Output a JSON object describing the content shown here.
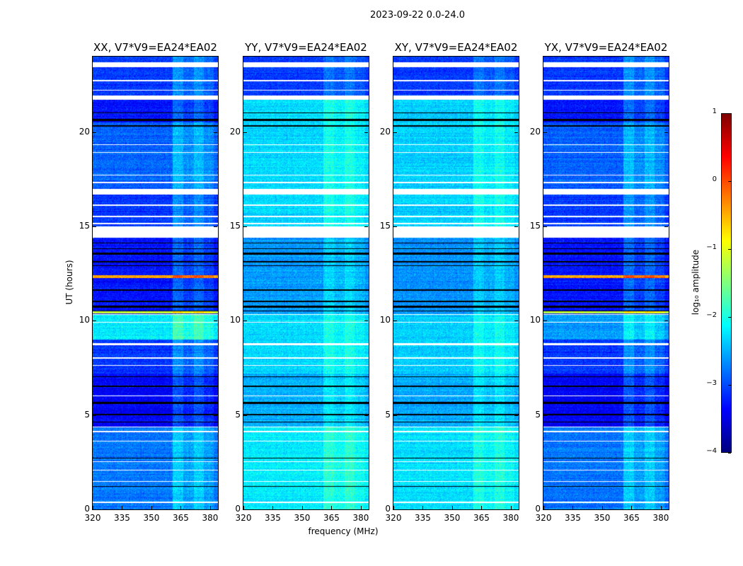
{
  "chart_data": {
    "type": "heatmap",
    "title": "2023-09-22 0.0-24.0",
    "xlabel": "frequency (MHz)",
    "ylabel": "UT (hours)",
    "xlim": [
      320,
      384
    ],
    "ylim": [
      0,
      24
    ],
    "xticks": [
      "320",
      "335",
      "350",
      "365",
      "380"
    ],
    "yticks": [
      "0",
      "5",
      "10",
      "15",
      "20"
    ],
    "rfi_band_mhz": [
      361,
      382
    ],
    "flagged_hours": [
      [
        23.45,
        23.7
      ],
      [
        22.7,
        22.75
      ],
      [
        22.2,
        22.25
      ],
      [
        21.7,
        21.95
      ],
      [
        19.3,
        19.35
      ],
      [
        18.9,
        18.95
      ],
      [
        17.7,
        17.75
      ],
      [
        17.3,
        17.35
      ],
      [
        16.7,
        17.0
      ],
      [
        16.1,
        16.15
      ],
      [
        15.5,
        15.55
      ],
      [
        15.1,
        15.2
      ],
      [
        14.4,
        15.0
      ],
      [
        10.3,
        10.35
      ],
      [
        9.9,
        9.95
      ],
      [
        8.7,
        8.8
      ],
      [
        8.0,
        8.05
      ],
      [
        7.6,
        7.65
      ],
      [
        6.0,
        6.05
      ],
      [
        4.35,
        4.4
      ],
      [
        4.1,
        4.15
      ],
      [
        3.6,
        3.65
      ],
      [
        2.5,
        2.55
      ],
      [
        2.05,
        2.1
      ],
      [
        1.45,
        1.5
      ],
      [
        0.35,
        0.4
      ]
    ],
    "zero_hours": [
      [
        21.0,
        21.05
      ],
      [
        20.6,
        20.7
      ],
      [
        20.3,
        20.35
      ],
      [
        14.1,
        14.15
      ],
      [
        13.8,
        13.85
      ],
      [
        13.5,
        13.6
      ],
      [
        13.1,
        13.15
      ],
      [
        12.9,
        12.95
      ],
      [
        11.6,
        11.65
      ],
      [
        11.0,
        11.05
      ],
      [
        10.7,
        10.8
      ],
      [
        10.5,
        10.55
      ],
      [
        7.0,
        7.05
      ],
      [
        6.5,
        6.55
      ],
      [
        5.6,
        5.7
      ],
      [
        5.0,
        5.05
      ],
      [
        4.6,
        4.65
      ],
      [
        2.7,
        2.75
      ],
      [
        1.2,
        1.25
      ]
    ],
    "panels": [
      {
        "title": "XX, V7*V9=EA24*EA02",
        "rfi_boost": 0.45,
        "base_levels": [
          [
            0,
            4.4,
            -2.8
          ],
          [
            4.4,
            7.2,
            -3.4
          ],
          [
            7.2,
            9.0,
            -3.1
          ],
          [
            9.0,
            10.3,
            -2.2
          ],
          [
            10.3,
            14.4,
            -3.3
          ],
          [
            15.0,
            16.7,
            -3.1
          ],
          [
            17.0,
            20.5,
            -2.9
          ],
          [
            20.5,
            21.7,
            -3.3
          ],
          [
            21.95,
            24,
            -3.1
          ]
        ],
        "strong_rows": [
          [
            12.25,
            12.4,
            -0.4
          ],
          [
            10.4,
            10.5,
            -1.2
          ]
        ]
      },
      {
        "title": "YY, V7*V9=EA24*EA02",
        "rfi_boost": 0.3,
        "base_levels": [
          [
            0,
            4.4,
            -2.2
          ],
          [
            4.4,
            7.2,
            -2.5
          ],
          [
            7.2,
            10.3,
            -2.3
          ],
          [
            10.3,
            14.4,
            -2.6
          ],
          [
            15.0,
            21.7,
            -2.3
          ],
          [
            21.95,
            24,
            -3.1
          ]
        ],
        "strong_rows": []
      },
      {
        "title": "XY, V7*V9=EA24*EA02",
        "rfi_boost": 0.3,
        "base_levels": [
          [
            0,
            4.4,
            -2.25
          ],
          [
            4.4,
            7.2,
            -2.55
          ],
          [
            7.2,
            10.3,
            -2.35
          ],
          [
            10.3,
            14.4,
            -2.65
          ],
          [
            15.0,
            21.7,
            -2.35
          ],
          [
            21.95,
            24,
            -3.1
          ]
        ],
        "strong_rows": []
      },
      {
        "title": "YX, V7*V9=EA24*EA02",
        "rfi_boost": 0.45,
        "base_levels": [
          [
            0,
            4.4,
            -2.8
          ],
          [
            4.4,
            7.2,
            -3.4
          ],
          [
            7.2,
            9.0,
            -3.1
          ],
          [
            9.0,
            10.3,
            -2.6
          ],
          [
            10.3,
            14.4,
            -3.3
          ],
          [
            15.0,
            16.7,
            -3.1
          ],
          [
            17.0,
            20.5,
            -2.9
          ],
          [
            20.5,
            21.7,
            -3.3
          ],
          [
            21.95,
            24,
            -3.1
          ]
        ],
        "strong_rows": [
          [
            12.25,
            12.4,
            -0.4
          ],
          [
            10.4,
            10.5,
            -1.2
          ]
        ]
      }
    ],
    "colorbar": {
      "label": "log₁₀ amplitude",
      "range": [
        -4,
        1
      ],
      "ticks": [
        "1",
        "0",
        "−1",
        "−2",
        "−3",
        "−4"
      ],
      "colormap": "jet"
    }
  }
}
